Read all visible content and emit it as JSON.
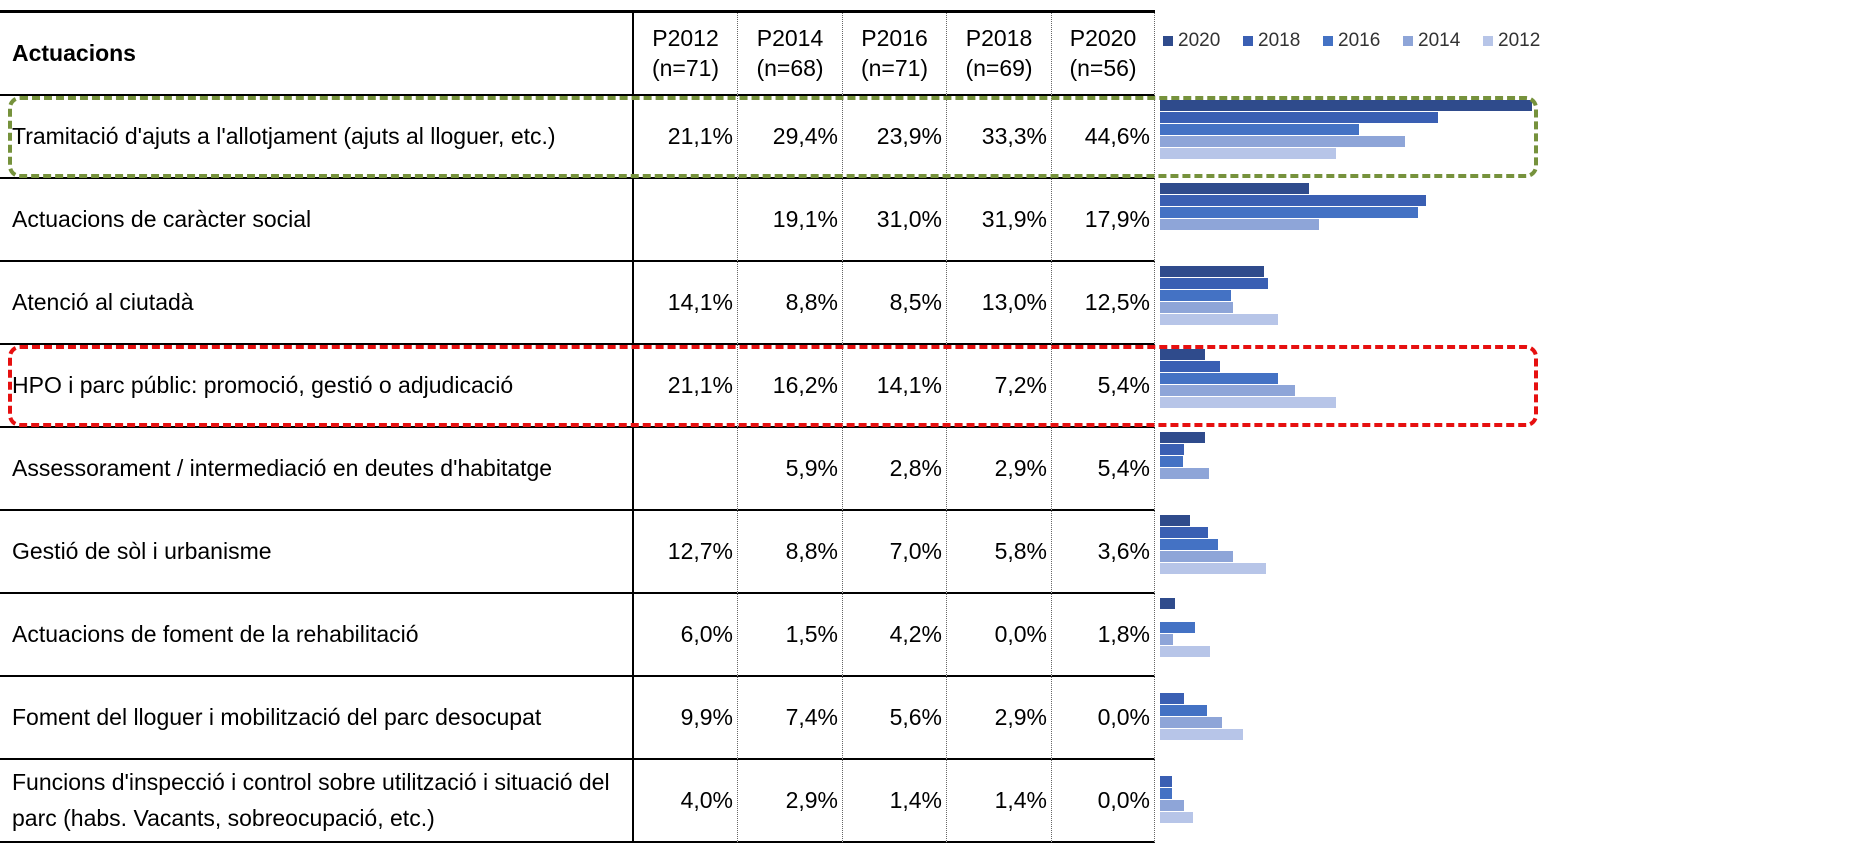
{
  "table": {
    "header": "Actuacions",
    "columns": [
      "P2012\n(n=71)",
      "P2014\n(n=68)",
      "P2016\n(n=71)",
      "P2018\n(n=69)",
      "P2020\n(n=56)"
    ],
    "rows": [
      {
        "label": "Tramitació d'ajuts a l'allotjament (ajuts al lloguer, etc.)",
        "values": [
          21.1,
          29.4,
          23.9,
          33.3,
          44.6
        ],
        "value_labels": [
          "21,1%",
          "29,4%",
          "23,9%",
          "33,3%",
          "44,6%"
        ]
      },
      {
        "label": "Actuacions de caràcter social",
        "values": [
          null,
          19.1,
          31.0,
          31.9,
          17.9
        ],
        "value_labels": [
          null,
          "19,1%",
          "31,0%",
          "31,9%",
          "17,9%"
        ]
      },
      {
        "label": "Atenció al ciutadà",
        "values": [
          14.1,
          8.8,
          8.5,
          13.0,
          12.5
        ],
        "value_labels": [
          "14,1%",
          "8,8%",
          "8,5%",
          "13,0%",
          "12,5%"
        ]
      },
      {
        "label": "HPO i parc públic: promoció, gestió o adjudicació",
        "values": [
          21.1,
          16.2,
          14.1,
          7.2,
          5.4
        ],
        "value_labels": [
          "21,1%",
          "16,2%",
          "14,1%",
          "7,2%",
          "5,4%"
        ]
      },
      {
        "label": "Assessorament / intermediació en deutes d'habitatge",
        "values": [
          null,
          5.9,
          2.8,
          2.9,
          5.4
        ],
        "value_labels": [
          null,
          "5,9%",
          "2,8%",
          "2,9%",
          "5,4%"
        ]
      },
      {
        "label": "Gestió de sòl i urbanisme",
        "values": [
          12.7,
          8.8,
          7.0,
          5.8,
          3.6
        ],
        "value_labels": [
          "12,7%",
          "8,8%",
          "7,0%",
          "5,8%",
          "3,6%"
        ]
      },
      {
        "label": "Actuacions de foment de la rehabilitació",
        "values": [
          6.0,
          1.5,
          4.2,
          0.0,
          1.8
        ],
        "value_labels": [
          "6,0%",
          "1,5%",
          "4,2%",
          "0,0%",
          "1,8%"
        ]
      },
      {
        "label": "Foment del lloguer i mobilització del parc desocupat",
        "values": [
          9.9,
          7.4,
          5.6,
          2.9,
          0.0
        ],
        "value_labels": [
          "9,9%",
          "7,4%",
          "5,6%",
          "2,9%",
          "0,0%"
        ]
      },
      {
        "label": "Funcions d'inspecció i control sobre utilització i situació del parc (habs. Vacants, sobreocupació, etc.)",
        "values": [
          4.0,
          2.9,
          1.4,
          1.4,
          0.0
        ],
        "value_labels": [
          "4,0%",
          "2,9%",
          "1,4%",
          "1,4%",
          "0,0%"
        ]
      }
    ]
  },
  "legend": [
    {
      "name": "2020",
      "color": "#2f4b8c"
    },
    {
      "name": "2018",
      "color": "#3a5fb3"
    },
    {
      "name": "2016",
      "color": "#4472c4"
    },
    {
      "name": "2014",
      "color": "#8ea5d8"
    },
    {
      "name": "2012",
      "color": "#b7c5e8"
    }
  ],
  "xlim": [
    0,
    45
  ]
}
